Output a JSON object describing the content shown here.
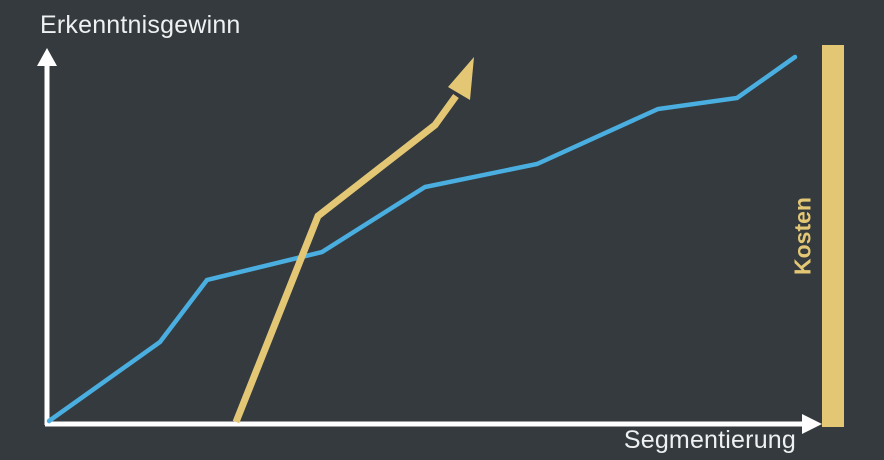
{
  "labels": {
    "y_axis": "Erkenntnisgewinn",
    "x_axis": "Segmentierung",
    "cost": "Kosten"
  },
  "colors": {
    "background": "#343a3d",
    "axis": "#ffffff",
    "insight_line": "#4aaee0",
    "cost_line": "#e3c775",
    "cost_bar": "#e3c775",
    "text": "#eef0f1"
  }
}
